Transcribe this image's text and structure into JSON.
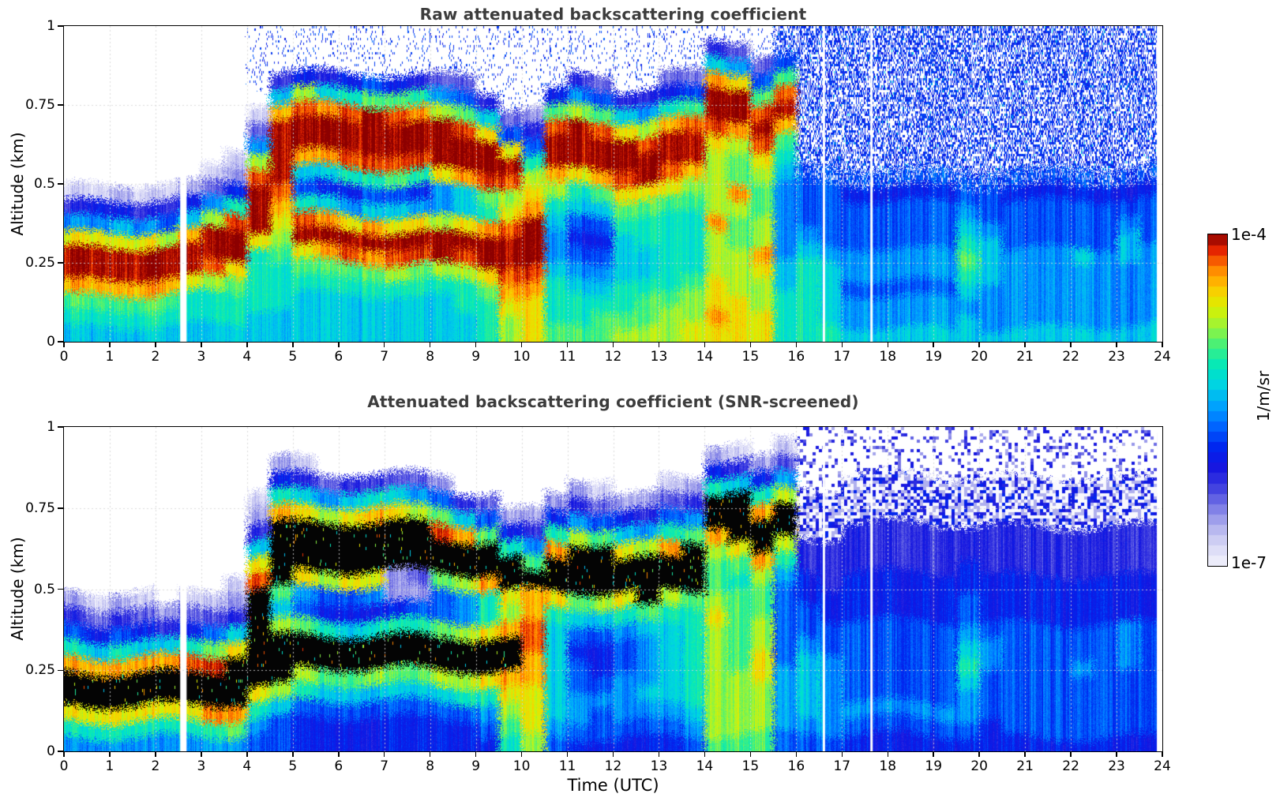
{
  "axis": {
    "x_label": "Time (UTC)",
    "y_label": "Altitude (km)",
    "x_ticks": [
      "0",
      "1",
      "2",
      "3",
      "4",
      "5",
      "6",
      "7",
      "8",
      "9",
      "10",
      "11",
      "12",
      "13",
      "14",
      "15",
      "16",
      "17",
      "18",
      "19",
      "20",
      "21",
      "22",
      "23",
      "24"
    ],
    "y_ticks": [
      "0",
      "0.25",
      "0.5",
      "0.75",
      "1"
    ],
    "x_range": [
      0,
      24
    ],
    "y_range": [
      0,
      1
    ],
    "grid": "dotted light-gray at every hour and every 0.25 km"
  },
  "colorbar": {
    "max_label": "1e-4",
    "min_label": "1e-7",
    "unit_label": "1/m/sr",
    "scale": "log",
    "stops": [
      [
        0.0,
        "#f2f2fc"
      ],
      [
        0.06,
        "#d8d8f6"
      ],
      [
        0.12,
        "#b0b0ee"
      ],
      [
        0.18,
        "#7878e6"
      ],
      [
        0.24,
        "#3c3ce0"
      ],
      [
        0.3,
        "#1414e0"
      ],
      [
        0.36,
        "#0028f0"
      ],
      [
        0.42,
        "#0064ff"
      ],
      [
        0.48,
        "#00a0ff"
      ],
      [
        0.54,
        "#00d2e6"
      ],
      [
        0.6,
        "#00e8be"
      ],
      [
        0.66,
        "#3cf082"
      ],
      [
        0.72,
        "#96f53c"
      ],
      [
        0.78,
        "#dcf000"
      ],
      [
        0.84,
        "#ffc800"
      ],
      [
        0.9,
        "#ff8200"
      ],
      [
        0.95,
        "#eb2800"
      ],
      [
        1.0,
        "#8c0000"
      ]
    ],
    "overflow_color": "#000000",
    "title_color": "#3c3c3c"
  },
  "chart_data": [
    {
      "type": "heatmap",
      "title": "Raw attenuated backscattering coefficient",
      "x_label": "Time (UTC)",
      "x_range": [
        0,
        24
      ],
      "x_units": "hours",
      "y_label": "Altitude (km)",
      "y_range": [
        0,
        1
      ],
      "value_units": "1/m/sr",
      "value_scale": "log",
      "value_min": 1e-07,
      "value_max": 0.0001,
      "time_step_hours": 0.5,
      "altitude_step_km": 0.05,
      "grid_codes": {
        ".": "no signal (white)",
        "1-f": "backscatter intensity, log scale from ~1e-7 (1) to ~1e-4 (f)",
        "s": "sparse blue noise speckle on white background",
        "S": "dense blue noise speckle (low-SNR region, after ~15.6 UTC)",
        "T": "noisy blue transition row",
        "x": "saturated black core (SNR-screened panel only)",
        "p": "sparse pale blue/lavender blocky speckle on white",
        "P": "pale lavender-blue mottled region"
      },
      "columns_top_to_bottom": [
        "..........147cffda98",
        "..........157cffda98",
        "..........258cffda98",
        "..........147cffda98",
        "..........146bffda98",
        "..........258dffc998",
        ".........137bffeb998",
        "........1259effca998",
        "ssss.137befffc999988",
        "sss48dffffedcba99988",
        "sss5beffd869efca9888",
        "sss48dffd858dfda9888",
        "sss59effe957cfea9888",
        "sss6afffe968dfda9888",
        "sss5aeffea68cfeb9888",
        "sss49dffe957cfea9888",
        "sss37bfffc77bffb9888",
        "sss36aeffd88cfeb9988",
        "ssss48cffea9dffca999",
        "sssss36cfebceffedcbb",
        "sssss2469bcdfffedccc",
        "ssss5aeffdb98778999a",
        "sss47bfffc986567899a",
        "sss36aeffda8656789aa",
        "ssss48cffeca988899ab",
        "ssss47beffca99889aab",
        "sss359dffeca99999abb",
        "sss36aeffdba9999abbc",
        "s48dffecbbbbdbbbccdc",
        "s37cffdbaadbaabbbccc",
        "ss36aefecbaabbdcbbcc",
        "SS6aefda987777788999",
        "SSSSSSSSST6667899999",
        "SSSSSSSSST6666788889",
        "SSSSSSSSST5666776778",
        "SSSSSSSSST5666776778",
        "SSSSSSSSST5666776778",
        "SSSSSSSSST5666776778",
        "SSSSSSSSST5666776778",
        "SSSSSSSSST6789a98788",
        "SSSSSSSSST6678887778",
        "SSSSSSSSST5666777778",
        "SSSSSSSSST5666777778",
        "SSSSSSSSST5666777778",
        "SSSSSSSSST5666877778",
        "SSSSSSSSST5666777778",
        "SSSSSSSSST5678877778",
        "SSSSSSSSST5666777778"
      ],
      "data_gaps_utc": [
        [
          2.54,
          2.68
        ],
        [
          16.58,
          16.63
        ],
        [
          17.62,
          17.67
        ],
        [
          23.88,
          24.0
        ]
      ],
      "features": [
        "Boundary-layer aerosol band ~0.15-0.35 km from 0-4 UTC (dark red core)",
        "Layer lifts after 4.2 UTC; double-layer structure 0.3-0.4 km and 0.55-0.75 km from 5-9.5 UTC",
        "Layers merge/descend 9.5-10.5 UTC with precipitation reaching the ground near 10 UTC",
        "Elevated layer 0.5-0.7 km from 10.5-14 UTC",
        "Deep precipitation columns 14-15.6 UTC with cloud top rising to ~0.85 km",
        "Signal lost after ~15.6 UTC: dense blue noise speckle above ~0.45 km, weak blue signal below",
        "Faint aerosol plume near 19.5-20 UTC around 0.2-0.35 km"
      ]
    },
    {
      "type": "heatmap",
      "title": "Attenuated backscattering coefficient (SNR-screened)",
      "x_label": "Time (UTC)",
      "x_range": [
        0,
        24
      ],
      "x_units": "hours",
      "y_label": "Altitude (km)",
      "y_range": [
        0,
        1
      ],
      "value_units": "1/m/sr",
      "value_scale": "log",
      "value_min": 1e-07,
      "value_max": 0.0001,
      "time_step_hours": 0.5,
      "altitude_step_km": 0.05,
      "grid_codes": {
        ".": "screened out / no signal (white)",
        "1-f": "backscatter intensity, log scale from ~1e-7 (1) to ~1e-4 (f)",
        "x": "saturated black core (strong aerosol/cloud)",
        "p": "sparse pale blue/lavender blocky speckle on white (marginal SNR, after 16 UTC)",
        "P": "pale lavender-blue mottled region (marginal SNR)"
      },
      "columns_top_to_bottom": [
        "..........2469dxxc97",
        "..........1358dxxc97",
        "..........2469dxxc97",
        "..........1358dxxc97",
        "...........248dxxc97",
        "..........1359exxc97",
        "..........136aexxd97",
        ".........1248cxxxda7",
        "....1248cexxxxxxc976",
        "..259dxxxxa8bxxxb866",
        "..148cxxxc76axxb9655",
        "...37bxxxb659xxa8655",
        "...48cxxxc658xxa8655",
        "...49dxxxc759xxb8655",
        "...38cxxx2259xxa8655",
        "...37bxxx3269xxa8655",
        "...26aexxa66axxb8655",
        "....48dxxb77bxxb9655",
        "....36axxd99cxxc9765",
        ".....259xxcbdxxdcba9",
        ".....247axddeeddcccb",
        "....259dxxc988888876",
        "...247bxxxa865667765",
        "...136axxxb865567665",
        "....258cxxc976677765",
        "....247bxxxa87778765",
        "...1369dxxb988888765",
        "...247axxxa999999876",
        ".259xxdbaabcbbbbbbba",
        ".148xxxca9aaaaabbbba",
        "..259dxxdbaabbccbbba",
        ".137bxxb976666677776",
        "ppppPPP4455667888876",
        "ppppPPP4445566777776",
        "pppPPP44455566666765",
        "pppPPP44455566666765",
        "pppPPP44455566666765",
        "pppPPP44455566666765",
        "pppPPP44455566666765",
        "pppPPP44556678987765",
        "pppPPP44455567766655",
        "pppPPP44455566666665",
        "pppPPP44455566666665",
        "pppPPP44455566666665",
        "pppPPP44455566766665",
        "pppPPP44455566666665",
        "pppPPP44455577766665",
        "pppPPP44455566666665"
      ],
      "data_gaps_utc": [
        [
          2.54,
          2.68
        ],
        [
          16.58,
          16.63
        ],
        [
          17.62,
          17.67
        ],
        [
          23.88,
          24.0
        ]
      ],
      "features": [
        "Same scene as raw panel but noise above the aerosol is screened to white",
        "Strong aerosol/cloud cores saturate to black with thin red-orange-yellow-cyan-blue rims",
        "Pale lavender patch ~7.3-7.9 UTC at 0.45-0.58 km",
        "After 16 UTC: blocky pale speckle above ~0.6 km fading into solid blue below",
        "Faint cyan plume near 19.5-20 UTC around 0.2-0.35 km"
      ]
    }
  ]
}
